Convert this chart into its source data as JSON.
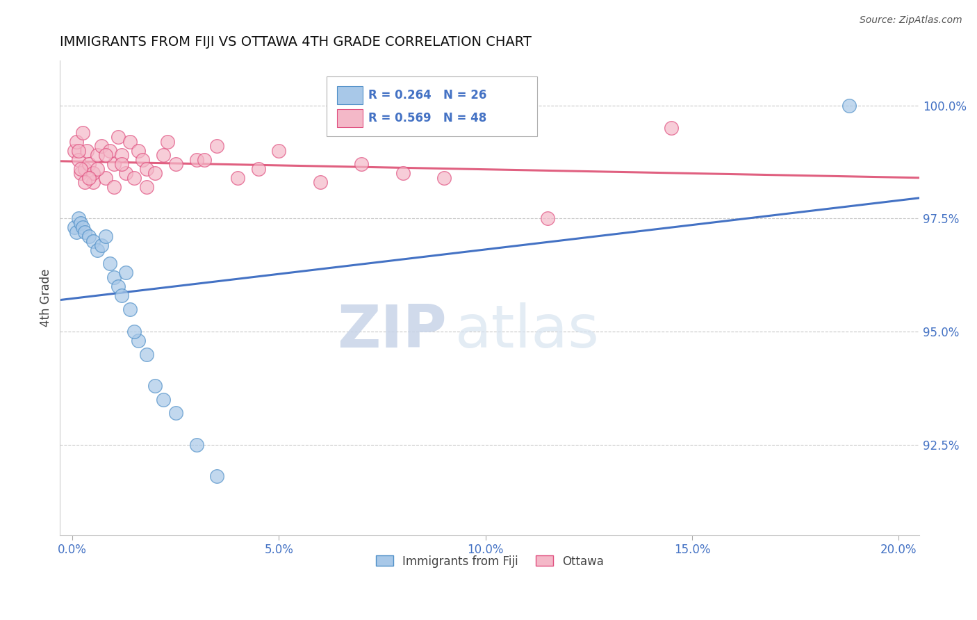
{
  "title": "IMMIGRANTS FROM FIJI VS OTTAWA 4TH GRADE CORRELATION CHART",
  "source": "Source: ZipAtlas.com",
  "xlabel_ticks": [
    "0.0%",
    "5.0%",
    "10.0%",
    "15.0%",
    "20.0%"
  ],
  "xlabel_tick_vals": [
    0.0,
    5.0,
    10.0,
    15.0,
    20.0
  ],
  "ylabel": "4th Grade",
  "xlim": [
    -0.3,
    20.5
  ],
  "ylim": [
    90.5,
    101.0
  ],
  "ytick_vals": [
    92.5,
    95.0,
    97.5,
    100.0
  ],
  "ytick_labels": [
    "92.5%",
    "95.0%",
    "97.5%",
    "100.0%"
  ],
  "fiji_x": [
    0.05,
    0.1,
    0.15,
    0.2,
    0.25,
    0.3,
    0.4,
    0.5,
    0.6,
    0.7,
    0.8,
    0.9,
    1.0,
    1.1,
    1.2,
    1.4,
    1.6,
    1.8,
    2.0,
    2.5,
    3.0,
    3.5,
    1.3,
    1.5,
    2.2,
    18.8
  ],
  "fiji_y": [
    97.3,
    97.2,
    97.5,
    97.4,
    97.3,
    97.2,
    97.1,
    97.0,
    96.8,
    96.9,
    97.1,
    96.5,
    96.2,
    96.0,
    95.8,
    95.5,
    94.8,
    94.5,
    93.8,
    93.2,
    92.5,
    91.8,
    96.3,
    95.0,
    93.5,
    100.0
  ],
  "ottawa_x": [
    0.05,
    0.1,
    0.15,
    0.2,
    0.25,
    0.3,
    0.35,
    0.4,
    0.5,
    0.6,
    0.7,
    0.8,
    0.9,
    1.0,
    1.1,
    1.2,
    1.3,
    1.4,
    1.5,
    1.6,
    1.7,
    1.8,
    2.0,
    2.2,
    2.5,
    3.0,
    3.5,
    4.0,
    4.5,
    5.0,
    6.0,
    7.0,
    8.0,
    9.0,
    1.0,
    0.8,
    0.5,
    0.3,
    0.2,
    0.15,
    1.2,
    1.8,
    2.3,
    3.2,
    0.6,
    0.4,
    11.5,
    14.5
  ],
  "ottawa_y": [
    99.0,
    99.2,
    98.8,
    98.5,
    99.4,
    98.6,
    99.0,
    98.7,
    98.3,
    98.9,
    99.1,
    98.4,
    99.0,
    98.7,
    99.3,
    98.9,
    98.5,
    99.2,
    98.4,
    99.0,
    98.8,
    98.6,
    98.5,
    98.9,
    98.7,
    98.8,
    99.1,
    98.4,
    98.6,
    99.0,
    98.3,
    98.7,
    98.5,
    98.4,
    98.2,
    98.9,
    98.5,
    98.3,
    98.6,
    99.0,
    98.7,
    98.2,
    99.2,
    98.8,
    98.6,
    98.4,
    97.5,
    99.5
  ],
  "fiji_color": "#a8c8e8",
  "ottawa_color": "#f4b8c8",
  "fiji_edgecolor": "#5090c8",
  "ottawa_edgecolor": "#e05080",
  "fiji_line_color": "#4472c4",
  "ottawa_line_color": "#e06080",
  "fiji_R": 0.264,
  "fiji_N": 26,
  "ottawa_R": 0.569,
  "ottawa_N": 48,
  "legend_label_fiji": "Immigrants from Fiji",
  "legend_label_ottawa": "Ottawa",
  "text_color": "#4472c4",
  "grid_color": "#c8c8c8",
  "background_color": "#ffffff"
}
